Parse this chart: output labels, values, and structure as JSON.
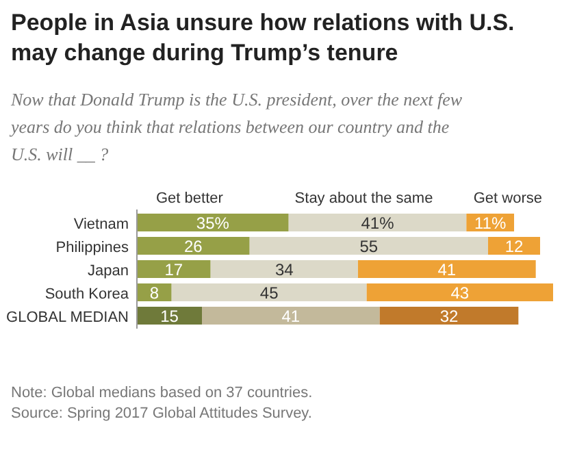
{
  "chart_data": {
    "type": "bar",
    "orientation": "horizontal",
    "stacked": true,
    "title": "People in Asia unsure how relations with U.S. may change during Trump’s tenure",
    "subtitle": "Now that Donald Trump is the U.S. president, over the next few years do you think that relations between our country and the U.S. will __ ?",
    "categories": [
      "Vietnam",
      "Philippines",
      "Japan",
      "South Korea",
      "GLOBAL MEDIAN"
    ],
    "legend": "top",
    "data_labels": true,
    "series": [
      {
        "name": "Get better",
        "colors": [
          "#96a047",
          "#96a047",
          "#96a047",
          "#96a047",
          "#6f7a3a"
        ],
        "values": [
          35,
          26,
          17,
          8,
          15
        ],
        "value_labels": [
          "35%",
          "26",
          "17",
          "8",
          "15"
        ]
      },
      {
        "name": "Stay about the same",
        "colors": [
          "#dcd9c8",
          "#dcd9c8",
          "#dcd9c8",
          "#dcd9c8",
          "#c3b99b"
        ],
        "values": [
          41,
          55,
          34,
          45,
          41
        ],
        "value_labels": [
          "41%",
          "55",
          "34",
          "45",
          "41"
        ]
      },
      {
        "name": "Get worse",
        "colors": [
          "#eea236",
          "#eea236",
          "#eea236",
          "#eea236",
          "#c17a2b"
        ],
        "values": [
          11,
          12,
          41,
          43,
          32
        ],
        "value_labels": [
          "11%",
          "12",
          "41",
          "43",
          "32"
        ]
      }
    ],
    "annotations": [
      "Note: Global medians based on 37 countries.",
      "Source: Spring 2017 Global Attitudes Survey."
    ]
  }
}
